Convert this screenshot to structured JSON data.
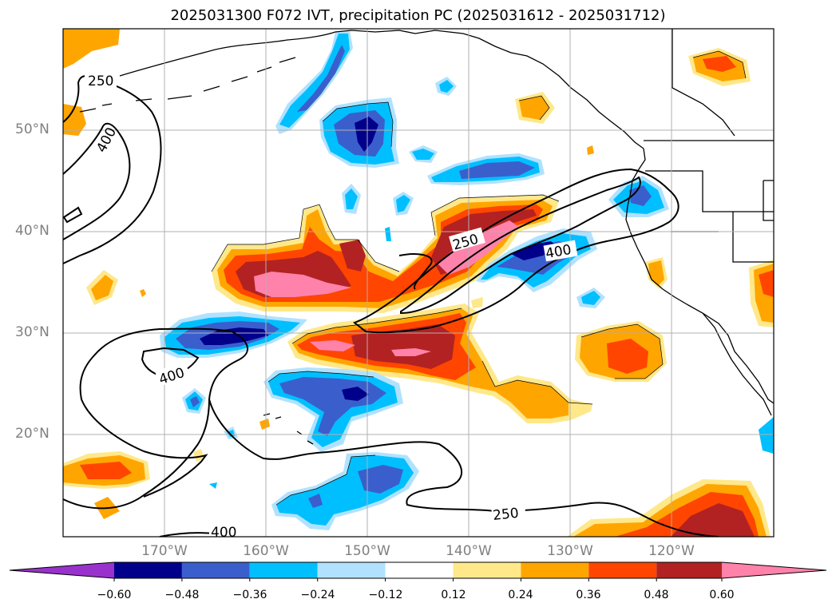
{
  "title": "2025031300 F072 IVT, precipitation PC (2025031612 - 2025031712)",
  "lat_labels": [
    "50°N",
    "40°N",
    "30°N",
    "20°N"
  ],
  "lon_labels": [
    "170°W",
    "160°W",
    "150°W",
    "140°W",
    "130°W",
    "120°W"
  ],
  "contour_labels": [
    "250",
    "400",
    "250",
    "400",
    "400",
    "250",
    "400"
  ],
  "colorbar": {
    "ticks": [
      "−0.60",
      "−0.48",
      "−0.36",
      "−0.24",
      "−0.12",
      "0.12",
      "0.24",
      "0.36",
      "0.48",
      "0.60"
    ],
    "colors": [
      "#9932cc",
      "#00008b",
      "#3a5fcd",
      "#00bfff",
      "#b0e2ff",
      "#ffffff",
      "#ffe88a",
      "#ffa500",
      "#ff4500",
      "#b22222",
      "#ff82ab"
    ]
  },
  "colors": {
    "c_pink": "#ff82ab",
    "c_darkred": "#b22222",
    "c_orangered": "#ff4500",
    "c_orange": "#ffa500",
    "c_yellow": "#ffe88a",
    "c_lightblue": "#b0e2ff",
    "c_skyblue": "#00bfff",
    "c_royal": "#3a5fcd",
    "c_navy": "#00008b",
    "grid": "#b0b0b0",
    "axis_label": "#808080"
  }
}
